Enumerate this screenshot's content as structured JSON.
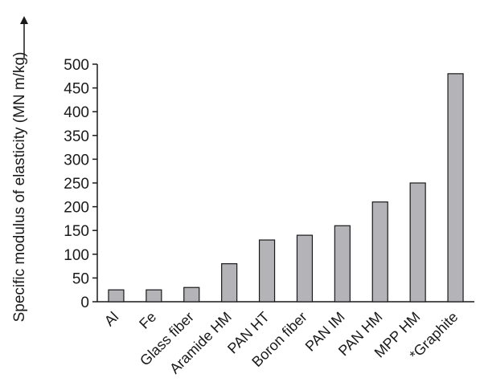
{
  "chart_data": {
    "type": "bar",
    "title": "",
    "xlabel": "",
    "ylabel": "Specific modulus of elasticity (MN m/kg)",
    "categories": [
      "Al",
      "Fe",
      "Glass fiber",
      "Aramide HM",
      "PAN HT",
      "Boron fiber",
      "PAN IM",
      "PAN HM",
      "MPP HM",
      "*Graphite"
    ],
    "values": [
      25,
      25,
      30,
      80,
      130,
      140,
      160,
      210,
      250,
      480
    ],
    "ylim": [
      0,
      500
    ],
    "yticks": [
      0,
      50,
      100,
      150,
      200,
      250,
      300,
      350,
      400,
      450,
      500
    ],
    "bar_color": "#b3b3b8",
    "grid": false
  }
}
